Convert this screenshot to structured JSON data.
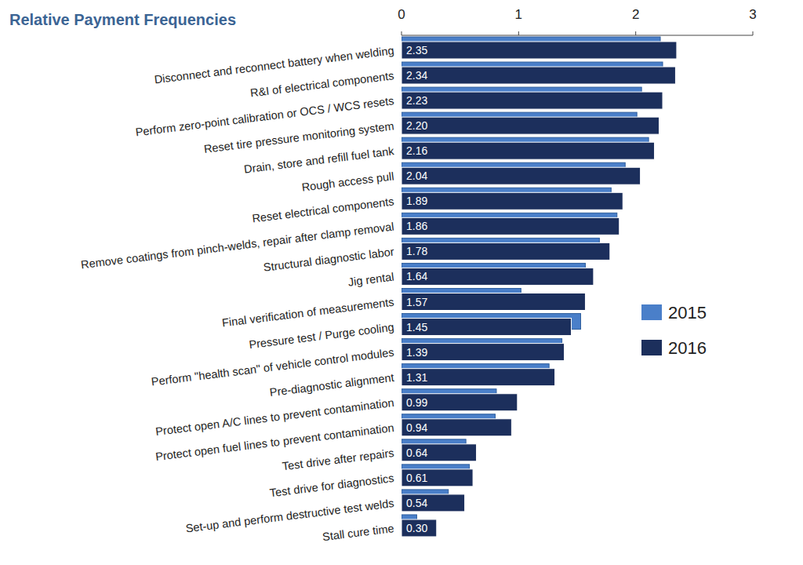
{
  "chart_data": {
    "type": "bar",
    "title": "Relative Payment Frequencies",
    "orientation": "horizontal",
    "categories": [
      "Disconnect and reconnect battery when welding",
      "R&I of electrical components",
      "Perform zero-point calibration or OCS / WCS resets",
      "Reset tire pressure monitoring system",
      "Drain, store and refill fuel tank",
      "Rough access pull",
      "Reset electrical components",
      "Remove coatings from pinch-welds, repair after clamp removal",
      "Structural diagnostic labor",
      "Jig rental",
      "Final verification of measurements",
      "Pressure test / Purge cooling",
      "Perform \"health scan\" of vehicle control modules",
      "Pre-diagnostic alignment",
      "Protect open A/C lines to prevent contamination",
      "Protect open fuel lines to prevent contamination",
      "Test drive after repairs",
      "Test drive for diagnostics",
      "Set-up and perform destructive test welds",
      "Stall cure time"
    ],
    "series": [
      {
        "name": "2015",
        "color": "#4a7fc9",
        "data_labels": false,
        "values": [
          2.21,
          2.23,
          2.05,
          2.01,
          2.11,
          1.91,
          1.79,
          1.84,
          1.69,
          1.57,
          1.02,
          1.53,
          1.37,
          1.26,
          0.81,
          0.8,
          0.55,
          0.58,
          0.4,
          0.13
        ]
      },
      {
        "name": "2016",
        "color": "#1c2f5c",
        "data_labels": true,
        "values": [
          2.35,
          2.34,
          2.23,
          2.2,
          2.16,
          2.04,
          1.89,
          1.86,
          1.78,
          1.64,
          1.57,
          1.45,
          1.39,
          1.31,
          0.99,
          0.94,
          0.64,
          0.61,
          0.54,
          0.3
        ],
        "value_labels": [
          "2.35",
          "2.34",
          "2.23",
          "2.20",
          "2.16",
          "2.04",
          "1.89",
          "1.86",
          "1.78",
          "1.64",
          "1.57",
          "1.45",
          "1.39",
          "1.31",
          "0.99",
          "0.94",
          "0.64",
          "0.61",
          "0.54",
          "0.30"
        ]
      }
    ],
    "xlim": [
      0,
      3
    ],
    "xticks": [
      0,
      1,
      2,
      3
    ],
    "grid": false,
    "legend": "right"
  }
}
